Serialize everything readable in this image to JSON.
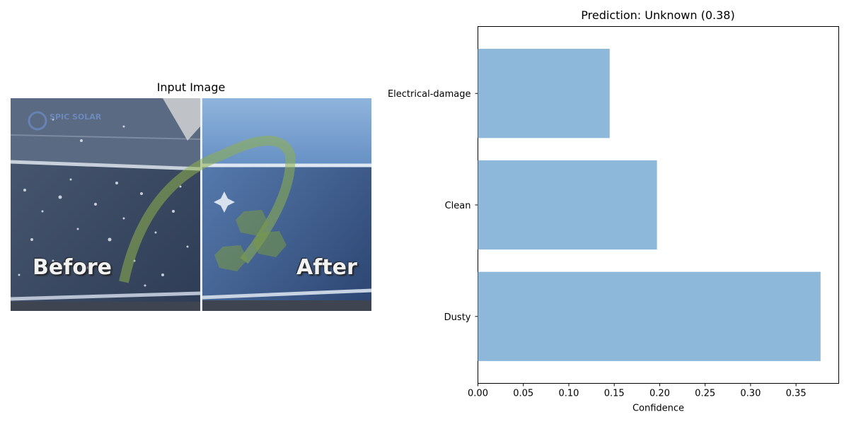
{
  "image_panel": {
    "title": "Input Image",
    "before_text": "Before",
    "after_text": "After",
    "logo_text": "SPIC SOLAR"
  },
  "chart_data": {
    "type": "bar",
    "orientation": "horizontal",
    "title": "Prediction: Unknown (0.38)",
    "xlabel": "Confidence",
    "ylabel": "",
    "categories": [
      "Dusty",
      "Clean",
      "Electrical-damage"
    ],
    "values": [
      0.377,
      0.197,
      0.145
    ],
    "xlim": [
      0,
      0.397
    ],
    "xticks": [
      0.0,
      0.05,
      0.1,
      0.15,
      0.2,
      0.25,
      0.3,
      0.35
    ],
    "xtick_labels": [
      "0.00",
      "0.05",
      "0.10",
      "0.15",
      "0.20",
      "0.25",
      "0.30",
      "0.35"
    ],
    "bar_color": "#8db8d9",
    "grid": false
  }
}
